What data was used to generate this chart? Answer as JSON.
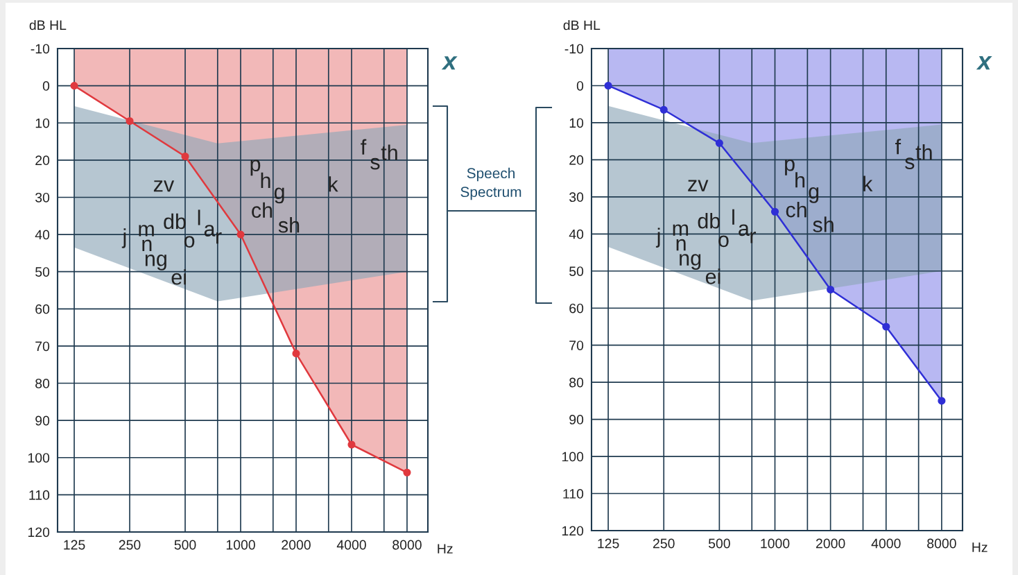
{
  "chart_data": [
    {
      "type": "line",
      "xlabel": "Hz",
      "ylabel": "dB HL",
      "log": "x",
      "grid": true,
      "marker": "circle",
      "line_style": "solid",
      "xlim": [
        101.5,
        10378
      ],
      "ylim": [
        120,
        -10
      ],
      "xticks": [
        125,
        250,
        500,
        {
          "value": 750,
          "label": null
        },
        1000,
        {
          "value": 1500,
          "label": null
        },
        2000,
        {
          "value": 3000,
          "label": null
        },
        4000,
        {
          "value": 6000,
          "label": null
        },
        8000
      ],
      "yticks": [
        -10,
        0,
        10,
        20,
        30,
        40,
        50,
        60,
        70,
        80,
        90,
        100,
        110,
        120
      ],
      "series": [
        {
          "type": "area",
          "color": "#f2b8b8",
          "x": [
            125,
            250,
            500,
            1000,
            2000,
            4000,
            8000
          ],
          "values": [
            null,
            null,
            null,
            null,
            null,
            null,
            null
          ],
          "lower": [
            -10,
            -10,
            -10,
            -10,
            -10,
            -10,
            -10
          ],
          "upper": [
            0,
            9.5,
            19,
            40,
            72,
            96.5,
            104
          ]
        },
        {
          "type": "area",
          "color": "#8fa8b8",
          "x": [
            125,
            750,
            8000
          ],
          "values": [
            null,
            null,
            null
          ],
          "lower": [
            5.5,
            15.5,
            10.5
          ],
          "upper": [
            43.5,
            58,
            50
          ]
        },
        {
          "color": "#e0393e",
          "x": [
            125,
            250,
            500,
            1000,
            2000,
            4000,
            8000
          ],
          "values": [
            0,
            9.5,
            19,
            40,
            72,
            96.5,
            104
          ]
        }
      ],
      "annotations": [
        "x",
        "Speech\nSpectrum",
        "zv",
        "j",
        "m",
        "n",
        "ng",
        "db",
        "l",
        "a",
        "r",
        "o",
        "ei",
        "p",
        "h",
        "g",
        "ch",
        "sh",
        "k",
        "f",
        "s",
        "th"
      ]
    },
    {
      "type": "line",
      "xlabel": "Hz",
      "ylabel": "dB HL",
      "log": "x",
      "grid": true,
      "marker": "circle",
      "line_style": "solid",
      "xlim": [
        101.5,
        10378
      ],
      "ylim": [
        120,
        -10
      ],
      "xticks": [
        125,
        250,
        500,
        {
          "value": 750,
          "label": null
        },
        1000,
        {
          "value": 1500,
          "label": null
        },
        2000,
        {
          "value": 3000,
          "label": null
        },
        4000,
        {
          "value": 6000,
          "label": null
        },
        8000
      ],
      "yticks": [
        -10,
        0,
        10,
        20,
        30,
        40,
        50,
        60,
        70,
        80,
        90,
        100,
        110,
        120
      ],
      "series": [
        {
          "type": "area",
          "color": "#b8b8f2",
          "x": [
            125,
            250,
            500,
            1000,
            2000,
            4000,
            8000
          ],
          "values": [
            null,
            null,
            null,
            null,
            null,
            null,
            null
          ],
          "lower": [
            -10,
            -10,
            -10,
            -10,
            -10,
            -10,
            -10
          ],
          "upper": [
            0,
            6.5,
            15.5,
            34,
            55,
            65,
            85
          ]
        },
        {
          "type": "area",
          "color": "#8fa8b8",
          "x": [
            125,
            750,
            8000
          ],
          "values": [
            null,
            null,
            null
          ],
          "lower": [
            5.5,
            15.5,
            10.5
          ],
          "upper": [
            43.5,
            58,
            50
          ]
        },
        {
          "color": "#2f2fd6",
          "x": [
            125,
            250,
            500,
            1000,
            2000,
            4000,
            8000
          ],
          "values": [
            0,
            6.5,
            15.5,
            34,
            55,
            65,
            85
          ]
        }
      ],
      "annotations": [
        "x",
        "zv",
        "j",
        "m",
        "n",
        "ng",
        "db",
        "l",
        "a",
        "r",
        "o",
        "ei",
        "p",
        "h",
        "g",
        "ch",
        "sh",
        "k",
        "f",
        "s",
        "th"
      ]
    }
  ]
}
